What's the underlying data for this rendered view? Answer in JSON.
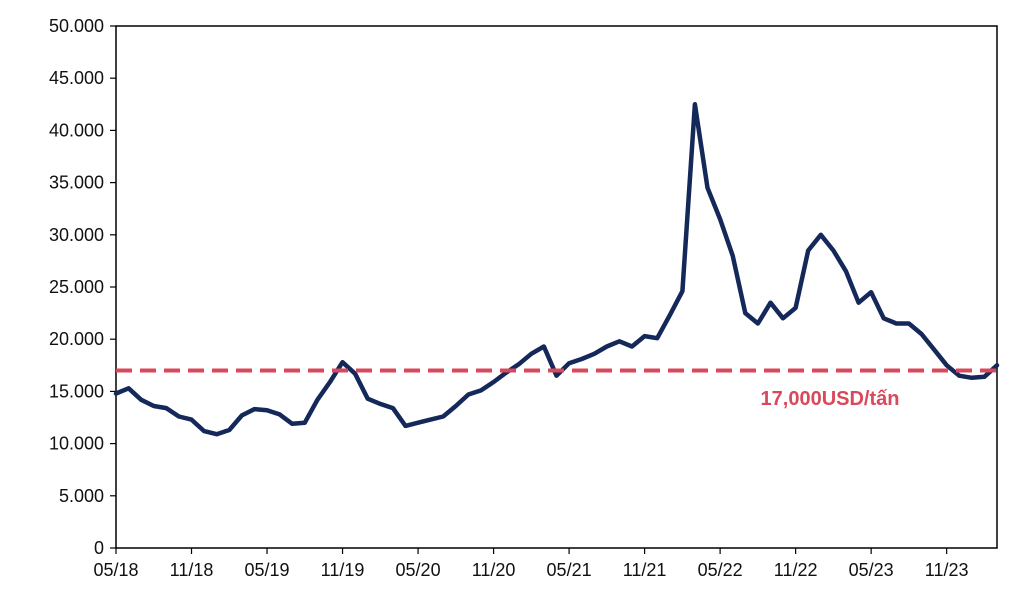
{
  "chart_data": {
    "type": "line",
    "title": "",
    "xlabel": "",
    "ylabel": "",
    "ylim": [
      0,
      50000
    ],
    "y_ticks": [
      0,
      5000,
      10000,
      15000,
      20000,
      25000,
      30000,
      35000,
      40000,
      45000,
      50000
    ],
    "y_tick_labels": [
      "0",
      "5.000",
      "10.000",
      "15.000",
      "20.000",
      "25.000",
      "30.000",
      "35.000",
      "40.000",
      "45.000",
      "50.000"
    ],
    "x_ticks": [
      "05/18",
      "11/18",
      "05/19",
      "11/19",
      "05/20",
      "11/20",
      "05/21",
      "11/21",
      "05/22",
      "11/22",
      "05/23",
      "11/23"
    ],
    "xlim": [
      "05/18",
      "03/24"
    ],
    "grid": false,
    "series": [
      {
        "color": "#14285a",
        "points": [
          [
            "05/18",
            14800
          ],
          [
            "06/18",
            15300
          ],
          [
            "07/18",
            14200
          ],
          [
            "08/18",
            13600
          ],
          [
            "09/18",
            13400
          ],
          [
            "10/18",
            12600
          ],
          [
            "11/18",
            12300
          ],
          [
            "12/18",
            11200
          ],
          [
            "01/19",
            10900
          ],
          [
            "02/19",
            11300
          ],
          [
            "03/19",
            12700
          ],
          [
            "04/19",
            13300
          ],
          [
            "05/19",
            13200
          ],
          [
            "06/19",
            12800
          ],
          [
            "07/19",
            11900
          ],
          [
            "08/19",
            12000
          ],
          [
            "09/19",
            14200
          ],
          [
            "10/19",
            15900
          ],
          [
            "11/19",
            17800
          ],
          [
            "12/19",
            16700
          ],
          [
            "01/20",
            14300
          ],
          [
            "02/20",
            13800
          ],
          [
            "03/20",
            13400
          ],
          [
            "04/20",
            11700
          ],
          [
            "05/20",
            12000
          ],
          [
            "06/20",
            12300
          ],
          [
            "07/20",
            12600
          ],
          [
            "08/20",
            13600
          ],
          [
            "09/20",
            14700
          ],
          [
            "10/20",
            15100
          ],
          [
            "11/20",
            15900
          ],
          [
            "12/20",
            16800
          ],
          [
            "01/21",
            17600
          ],
          [
            "02/21",
            18600
          ],
          [
            "03/21",
            19300
          ],
          [
            "04/21",
            16500
          ],
          [
            "05/21",
            17700
          ],
          [
            "06/21",
            18100
          ],
          [
            "07/21",
            18600
          ],
          [
            "08/21",
            19300
          ],
          [
            "09/21",
            19800
          ],
          [
            "10/21",
            19300
          ],
          [
            "11/21",
            20300
          ],
          [
            "12/21",
            20100
          ],
          [
            "01/22",
            22300
          ],
          [
            "02/22",
            24600
          ],
          [
            "03/22",
            42500
          ],
          [
            "04/22",
            34500
          ],
          [
            "05/22",
            31500
          ],
          [
            "06/22",
            28000
          ],
          [
            "07/22",
            22500
          ],
          [
            "08/22",
            21500
          ],
          [
            "09/22",
            23500
          ],
          [
            "10/22",
            22000
          ],
          [
            "11/22",
            23000
          ],
          [
            "12/22",
            28500
          ],
          [
            "01/23",
            30000
          ],
          [
            "02/23",
            28500
          ],
          [
            "03/23",
            26500
          ],
          [
            "04/23",
            23500
          ],
          [
            "05/23",
            24500
          ],
          [
            "06/23",
            22000
          ],
          [
            "07/23",
            21500
          ],
          [
            "08/23",
            21500
          ],
          [
            "09/23",
            20500
          ],
          [
            "10/23",
            19000
          ],
          [
            "11/23",
            17500
          ],
          [
            "12/23",
            16500
          ],
          [
            "01/24",
            16300
          ],
          [
            "02/24",
            16400
          ],
          [
            "03/24",
            17500
          ]
        ]
      }
    ],
    "reference_line": {
      "value": 17000,
      "label": "17,000USD/tấn",
      "color": "#d9495c",
      "style": "dashed"
    }
  }
}
